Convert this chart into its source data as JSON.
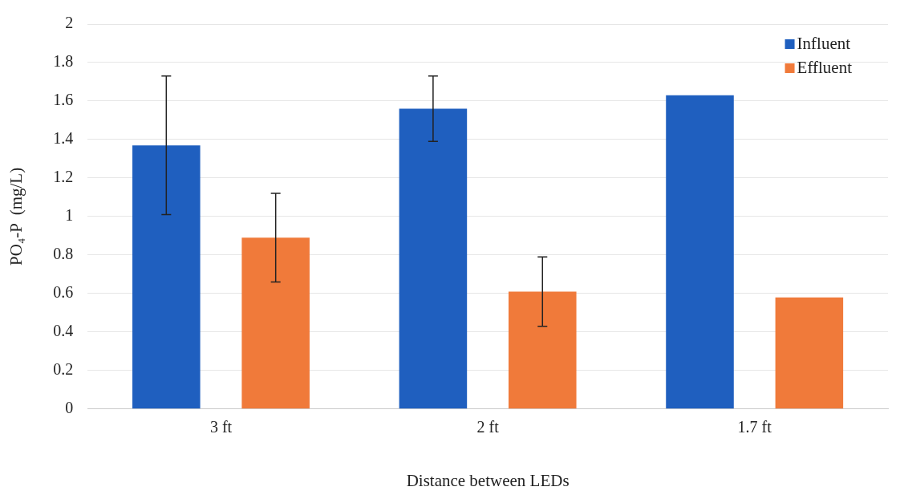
{
  "chart_data": {
    "type": "bar",
    "xlabel": "Distance between LEDs",
    "ylabel": "PO₄-P  (mg/L)",
    "categories": [
      "3 ft",
      "2 ft",
      "1.7 ft"
    ],
    "series": [
      {
        "name": "Influent",
        "color": "#1f5fbf",
        "values": [
          1.37,
          1.56,
          1.63
        ],
        "errors": [
          0.36,
          0.17,
          null
        ]
      },
      {
        "name": "Effluent",
        "color": "#f07a3a",
        "values": [
          0.89,
          0.61,
          0.58
        ],
        "errors": [
          0.23,
          0.18,
          null
        ]
      }
    ],
    "ylim": [
      0,
      2
    ],
    "yticks": [
      0,
      0.2,
      0.4,
      0.6,
      0.8,
      1,
      1.2,
      1.4,
      1.6,
      1.8,
      2
    ],
    "grid": "y",
    "legend": "top right"
  }
}
